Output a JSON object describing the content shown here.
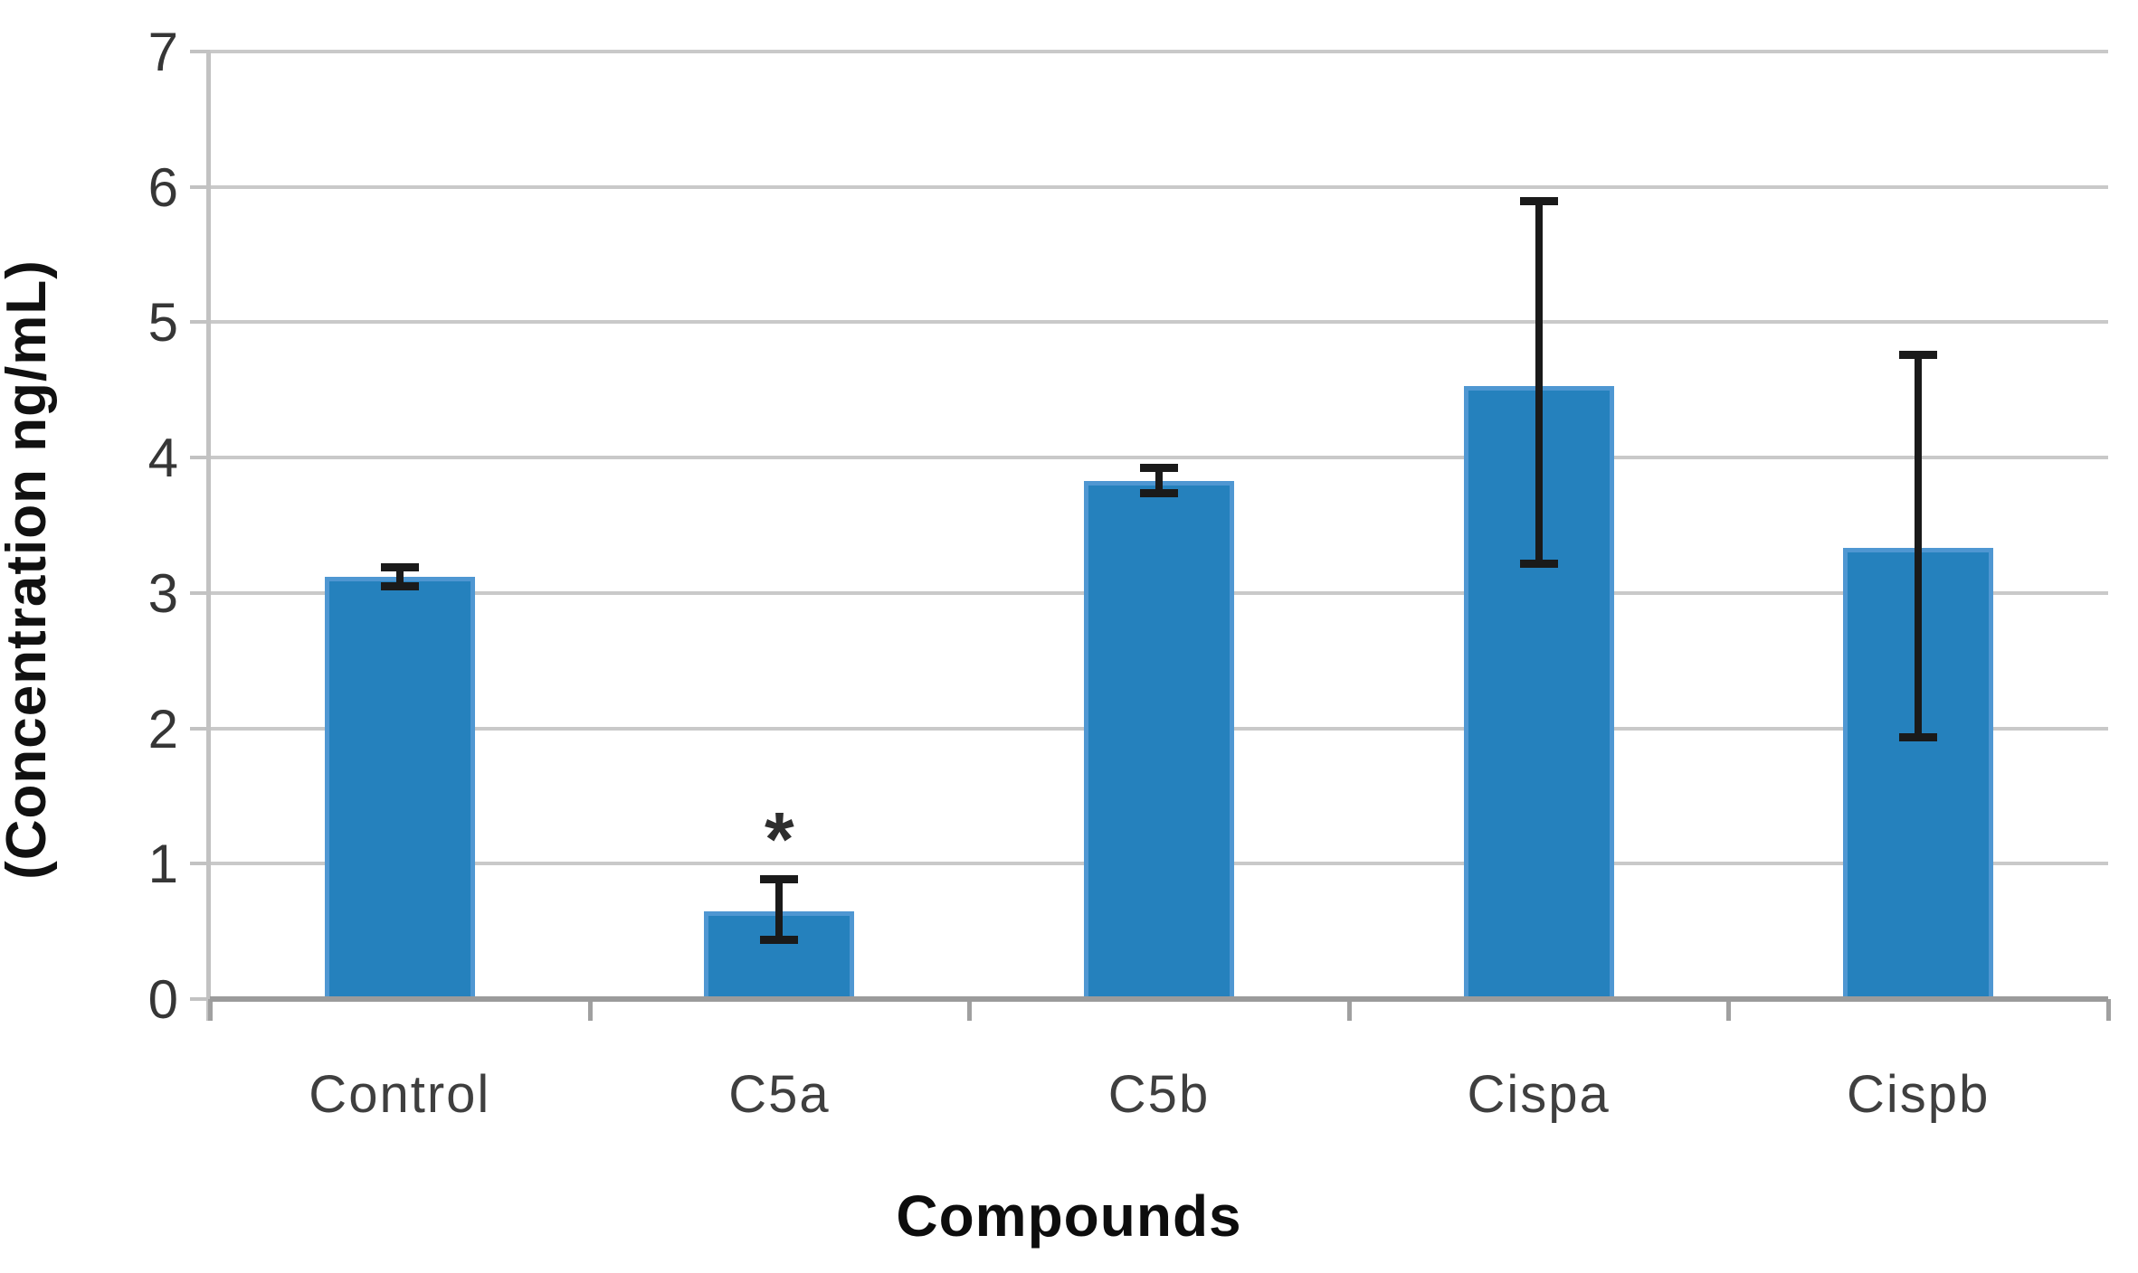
{
  "chart_data": {
    "type": "bar",
    "title": "",
    "xlabel": "Compounds",
    "ylabel": "(Concentration ng/mL)",
    "categories": [
      "Control",
      "C5a",
      "C5b",
      "Cispa",
      "Cispb"
    ],
    "values": [
      3.12,
      0.65,
      3.83,
      4.53,
      3.33
    ],
    "error_low": [
      3.05,
      0.44,
      3.74,
      3.22,
      1.94
    ],
    "error_high": [
      3.19,
      0.89,
      3.93,
      5.9,
      4.76
    ],
    "annotations": [
      {
        "category": "C5a",
        "text": "*",
        "y": 1.25
      }
    ],
    "ylim": [
      0,
      7
    ],
    "yticks": [
      0,
      1,
      2,
      3,
      4,
      5,
      6,
      7
    ],
    "grid": true,
    "legend": "none",
    "bar_color": "#2581BD",
    "bar_edge_color": "#4f97d2",
    "error_color": "#1a1a1a",
    "gridline_color": "#c9c9c9",
    "baseline_color": "#9b9b9b",
    "axis_line_color": "#c2c2c2",
    "tick_color": "#a0a0a0",
    "tick_label_color": "#363636",
    "category_label_color": "#3f3f3f"
  }
}
